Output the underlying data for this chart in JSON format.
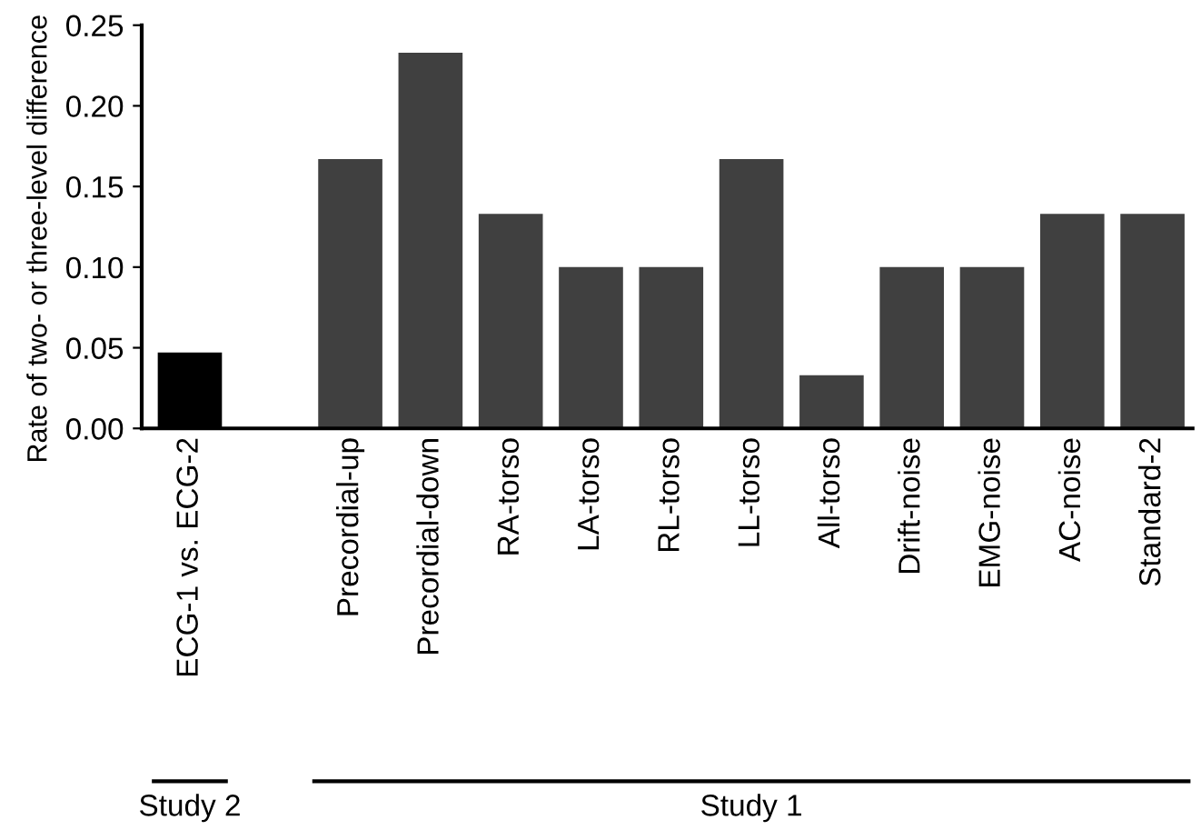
{
  "chart_data": {
    "type": "bar",
    "ylabel": "Rate of two- or three-level difference",
    "categories": [
      "ECG-1 vs. ECG-2",
      null,
      "Precordial-up",
      "Precordial-down",
      "RA-torso",
      "LA-torso",
      "RL-torso",
      "LL-torso",
      "All-torso",
      "Drift-noise",
      "EMG-noise",
      "AC-noise",
      "Standard-2"
    ],
    "values": [
      0.047,
      null,
      0.167,
      0.233,
      0.133,
      0.1,
      0.1,
      0.167,
      0.033,
      0.1,
      0.1,
      0.133,
      0.133
    ],
    "colors": [
      "#000000",
      null,
      "#404040",
      "#404040",
      "#404040",
      "#404040",
      "#404040",
      "#404040",
      "#404040",
      "#404040",
      "#404040",
      "#404040",
      "#404040"
    ],
    "ylim": [
      0,
      0.25
    ],
    "yticks": [
      {
        "value": 0,
        "label": "0.00"
      },
      {
        "value": 0.05,
        "label": "0.05"
      },
      {
        "value": 0.1,
        "label": "0.10"
      },
      {
        "value": 0.15,
        "label": "0.15"
      },
      {
        "value": 0.2,
        "label": "0.20"
      },
      {
        "value": 0.25,
        "label": "0.25"
      }
    ],
    "grid": false,
    "annotations": [
      "Study 2",
      "Study 1"
    ]
  }
}
